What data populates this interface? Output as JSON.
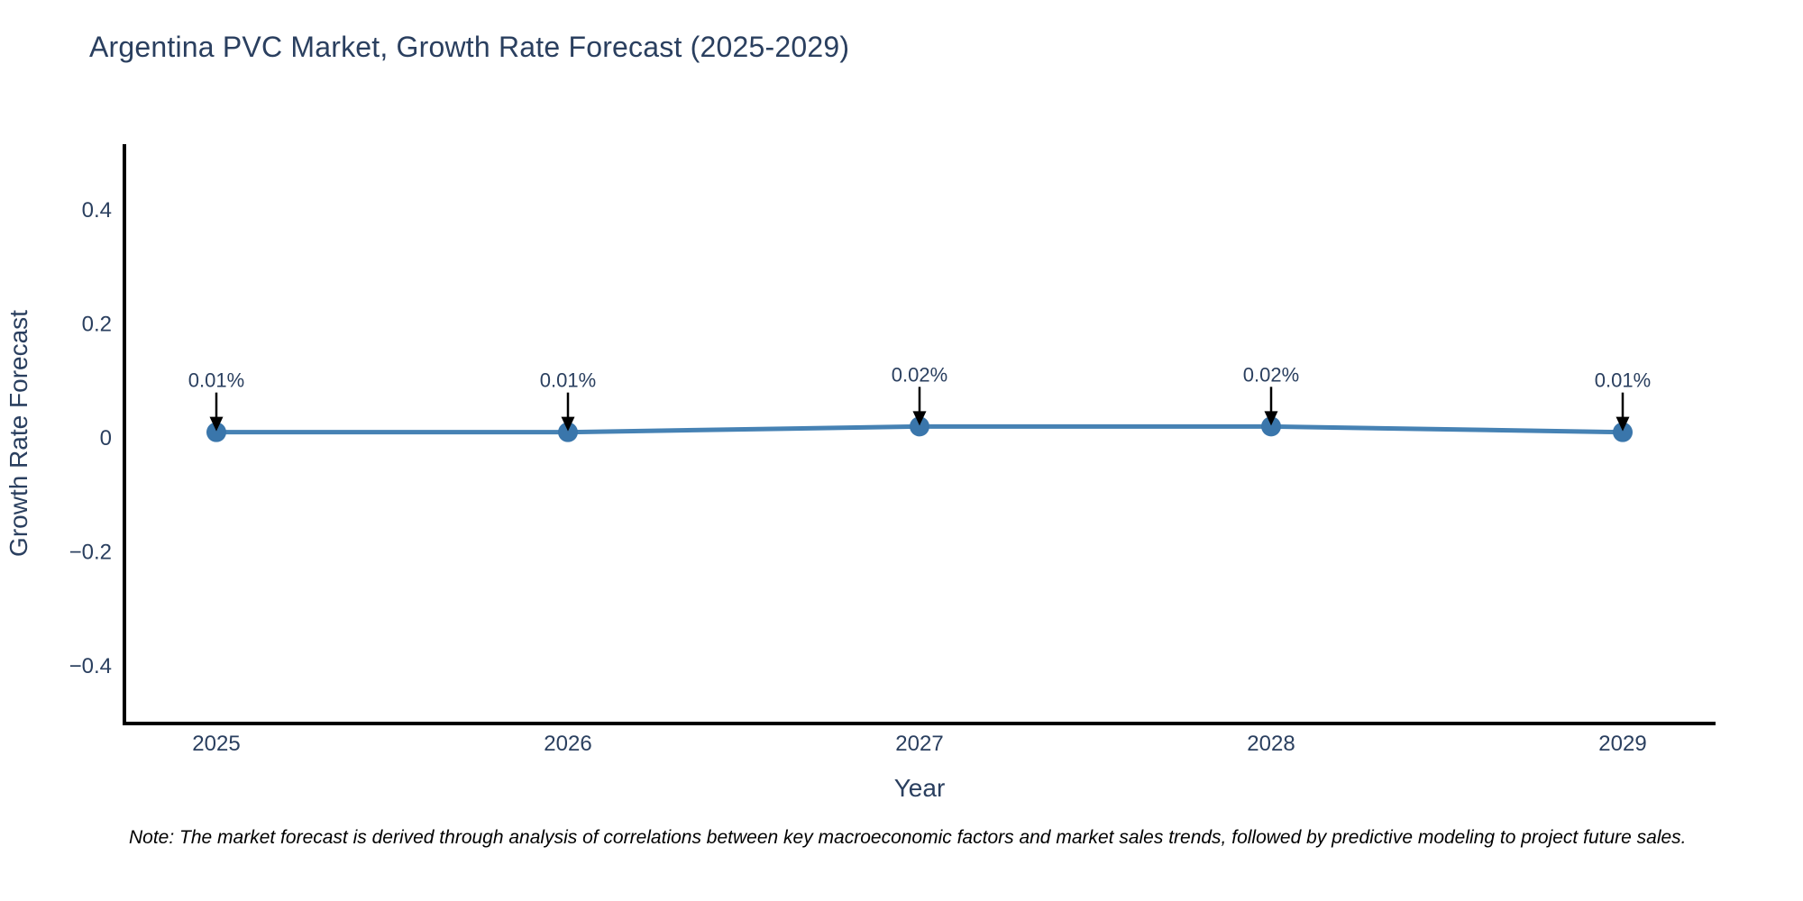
{
  "page": {
    "background": "#ffffff"
  },
  "note": "Note: The market forecast is derived through analysis of correlations between key macroeconomic factors and market sales trends, followed by predictive modeling to project future sales.",
  "chart_data": {
    "type": "line",
    "title": "Argentina PVC Market, Growth Rate Forecast (2025-2029)",
    "xlabel": "Year",
    "ylabel": "Growth Rate Forecast",
    "categories": [
      "2025",
      "2026",
      "2027",
      "2028",
      "2029"
    ],
    "series": [
      {
        "name": "Growth Rate Forecast",
        "values": [
          0.01,
          0.01,
          0.02,
          0.02,
          0.01
        ]
      }
    ],
    "point_labels": [
      "0.01%",
      "0.01%",
      "0.02%",
      "0.02%",
      "0.01%"
    ],
    "yticks": [
      0.4,
      0.2,
      0,
      -0.2,
      -0.4
    ],
    "ytick_labels": [
      "0.4",
      "0.2",
      "0",
      "−0.2",
      "−0.4"
    ],
    "ylim": [
      -0.5,
      0.52
    ],
    "grid": false,
    "legend_visible": false,
    "annotation_arrows": "down",
    "colors": {
      "line": "#4682b4",
      "marker": "#3a76ab",
      "axis": "#000000",
      "text": "#2a3f5f",
      "annotation_arrow": "#000000",
      "note_text": "#000000"
    }
  }
}
